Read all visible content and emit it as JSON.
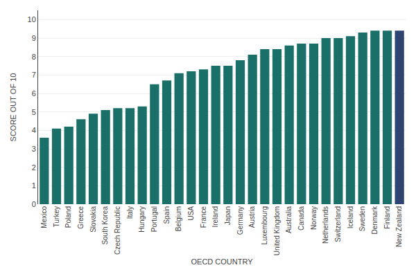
{
  "chart_data": {
    "type": "bar",
    "categories": [
      "Mexico",
      "Turkey",
      "Poland",
      "Greece",
      "Slovakia",
      "South Korea",
      "Czech Republic",
      "Italy",
      "Hungary",
      "Portugal",
      "Spain",
      "Belgium",
      "USA",
      "France",
      "Ireland",
      "Japan",
      "Germany",
      "Austria",
      "Luxembourg",
      "United Kingdom",
      "Australia",
      "Canada",
      "Norway",
      "Netherlands",
      "Switzerland",
      "Iceland",
      "Sweden",
      "Denmark",
      "Finland",
      "New Zealand"
    ],
    "values": [
      3.6,
      4.1,
      4.2,
      4.6,
      4.9,
      5.1,
      5.2,
      5.2,
      5.3,
      6.5,
      6.7,
      7.1,
      7.2,
      7.3,
      7.5,
      7.5,
      7.8,
      8.1,
      8.4,
      8.4,
      8.6,
      8.7,
      8.7,
      9.0,
      9.0,
      9.1,
      9.3,
      9.4,
      9.4,
      9.4
    ],
    "colors": [
      "#1a7068",
      "#1a7068",
      "#1a7068",
      "#1a7068",
      "#1a7068",
      "#1a7068",
      "#1a7068",
      "#1a7068",
      "#1a7068",
      "#1a7068",
      "#1a7068",
      "#1a7068",
      "#1a7068",
      "#1a7068",
      "#1a7068",
      "#1a7068",
      "#1a7068",
      "#1a7068",
      "#1a7068",
      "#1a7068",
      "#1a7068",
      "#1a7068",
      "#1a7068",
      "#1a7068",
      "#1a7068",
      "#1a7068",
      "#1a7068",
      "#1a7068",
      "#1a7068",
      "#2e4472"
    ],
    "xlabel": "OECD COUNTRY",
    "ylabel": "SCORE OUT OF 10",
    "ylim": [
      0,
      10.5
    ],
    "yticks": [
      0,
      1,
      2,
      3,
      4,
      5,
      6,
      7,
      8,
      9,
      10
    ],
    "grid": true
  }
}
